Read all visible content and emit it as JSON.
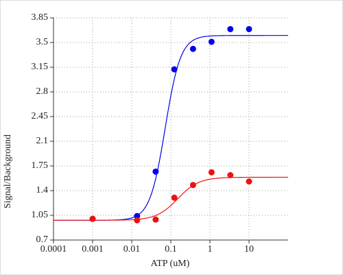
{
  "chart_data": {
    "type": "scatter",
    "xlabel": "ATP (uM)",
    "ylabel": "Signal/Background",
    "xscale": "log",
    "xlim": [
      0.0001,
      100
    ],
    "xticks": [
      0.0001,
      0.001,
      0.01,
      0.1,
      1,
      10
    ],
    "ylim": [
      0.7,
      3.85
    ],
    "yticks": [
      0.7,
      1.05,
      1.4,
      1.75,
      2.1,
      2.45,
      2.8,
      3.15,
      3.5,
      3.85
    ],
    "grid": true,
    "series": [
      {
        "color": "#0000ee",
        "x": [
          0.001,
          0.0137,
          0.041,
          0.123,
          0.37,
          1.1,
          3.33,
          10
        ],
        "values": [
          1.0,
          1.04,
          1.67,
          3.12,
          3.41,
          3.51,
          3.69,
          3.69
        ],
        "fit": {
          "bottom": 0.98,
          "top": 3.6,
          "ec50": 0.072,
          "hill": 2.2
        }
      },
      {
        "color": "#ee1111",
        "x": [
          0.001,
          0.0137,
          0.041,
          0.123,
          0.37,
          1.1,
          3.33,
          10
        ],
        "values": [
          1.0,
          0.98,
          0.99,
          1.3,
          1.48,
          1.66,
          1.62,
          1.53
        ],
        "fit": {
          "bottom": 0.98,
          "top": 1.59,
          "ec50": 0.15,
          "hill": 1.6
        }
      }
    ]
  }
}
